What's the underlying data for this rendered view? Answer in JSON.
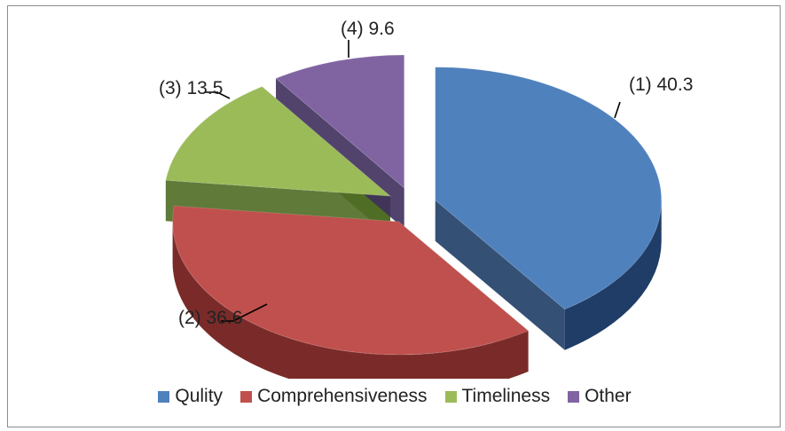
{
  "chart_data": {
    "type": "pie",
    "categories": [
      "Qulity",
      "Comprehensiveness",
      "Timeliness",
      "Other"
    ],
    "values": [
      40.3,
      36.6,
      13.5,
      9.6
    ],
    "data_labels": [
      "(1) 40.3",
      "(2) 36.6",
      "(3) 13.5",
      "(4) 9.6"
    ],
    "colors": [
      "#4f81bd",
      "#c0504d",
      "#9bbb59",
      "#8064a2"
    ],
    "style": "3d-exploded",
    "legend_position": "bottom"
  }
}
